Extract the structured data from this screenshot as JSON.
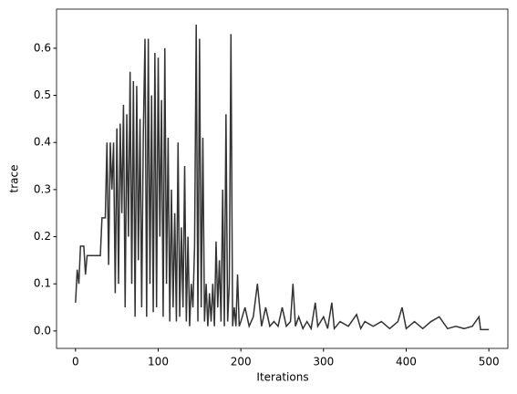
{
  "chart_data": {
    "type": "line",
    "xlabel": "Iterations",
    "ylabel": "trace",
    "x": [
      0,
      2,
      4,
      6,
      10,
      12,
      14,
      30,
      32,
      36,
      38,
      40,
      42,
      44,
      46,
      48,
      50,
      52,
      54,
      56,
      58,
      60,
      62,
      64,
      66,
      68,
      70,
      72,
      74,
      76,
      78,
      80,
      82,
      84,
      86,
      88,
      90,
      92,
      94,
      96,
      98,
      100,
      102,
      104,
      106,
      108,
      110,
      112,
      114,
      116,
      118,
      120,
      122,
      124,
      126,
      128,
      130,
      132,
      134,
      136,
      138,
      140,
      142,
      144,
      146,
      148,
      150,
      152,
      154,
      156,
      158,
      160,
      162,
      164,
      166,
      168,
      170,
      172,
      174,
      176,
      178,
      180,
      182,
      184,
      186,
      188,
      190,
      192,
      194,
      196,
      198,
      200,
      205,
      210,
      215,
      220,
      225,
      230,
      235,
      240,
      245,
      250,
      255,
      260,
      263,
      266,
      270,
      275,
      280,
      285,
      290,
      293,
      300,
      305,
      310,
      313,
      320,
      330,
      340,
      345,
      350,
      360,
      370,
      380,
      390,
      395,
      400,
      410,
      420,
      430,
      440,
      450,
      460,
      470,
      480,
      488,
      490,
      500
    ],
    "series": [
      {
        "color": "#333333",
        "values": [
          0.06,
          0.13,
          0.1,
          0.18,
          0.18,
          0.12,
          0.16,
          0.16,
          0.24,
          0.24,
          0.4,
          0.14,
          0.4,
          0.3,
          0.4,
          0.08,
          0.43,
          0.1,
          0.44,
          0.25,
          0.48,
          0.05,
          0.46,
          0.2,
          0.55,
          0.1,
          0.53,
          0.03,
          0.52,
          0.15,
          0.45,
          0.05,
          0.42,
          0.62,
          0.03,
          0.62,
          0.1,
          0.5,
          0.04,
          0.59,
          0.05,
          0.58,
          0.2,
          0.49,
          0.03,
          0.6,
          0.1,
          0.41,
          0.02,
          0.3,
          0.05,
          0.25,
          0.02,
          0.4,
          0.03,
          0.22,
          0.05,
          0.35,
          0.02,
          0.2,
          0.01,
          0.1,
          0.05,
          0.18,
          0.65,
          0.02,
          0.62,
          0.05,
          0.41,
          0.02,
          0.1,
          0.01,
          0.08,
          0.02,
          0.1,
          0.01,
          0.19,
          0.05,
          0.15,
          0.02,
          0.3,
          0.01,
          0.46,
          0.02,
          0.1,
          0.63,
          0.01,
          0.05,
          0.01,
          0.12,
          0.01,
          0.02,
          0.05,
          0.01,
          0.03,
          0.1,
          0.01,
          0.05,
          0.01,
          0.02,
          0.01,
          0.05,
          0.01,
          0.02,
          0.1,
          0.01,
          0.03,
          0.005,
          0.02,
          0.005,
          0.06,
          0.01,
          0.03,
          0.005,
          0.06,
          0.005,
          0.02,
          0.01,
          0.035,
          0.005,
          0.02,
          0.01,
          0.02,
          0.005,
          0.02,
          0.05,
          0.005,
          0.02,
          0.005,
          0.02,
          0.03,
          0.005,
          0.01,
          0.005,
          0.01,
          0.03,
          0.003,
          0.003
        ]
      }
    ],
    "xlim": [
      -23,
      523
    ],
    "ylim": [
      -0.037,
      0.683
    ],
    "xticks": [
      0,
      100,
      200,
      300,
      400,
      500
    ],
    "yticks": [
      {
        "value": 0,
        "label": "0.0"
      },
      0.1,
      0.2,
      0.3,
      0.4,
      0.5,
      0.6
    ]
  }
}
